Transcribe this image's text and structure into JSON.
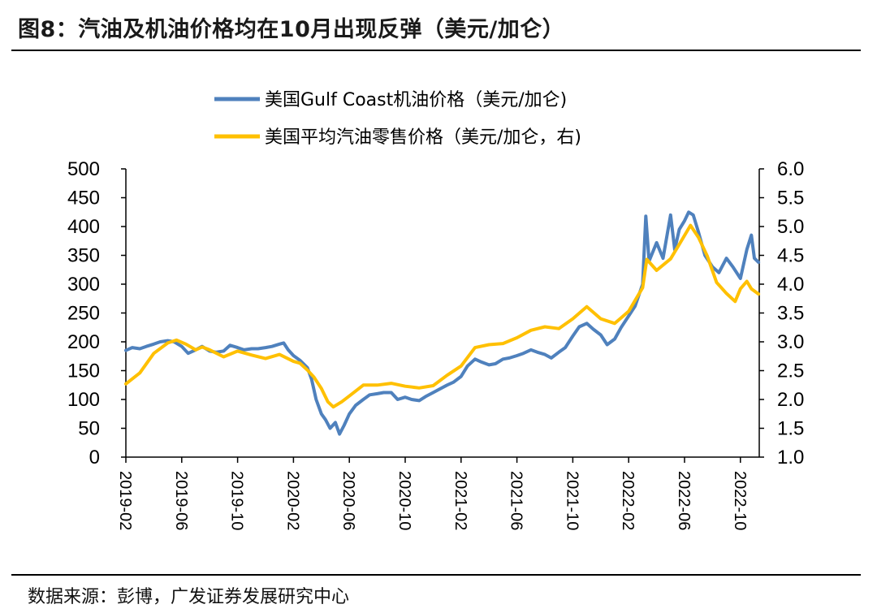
{
  "figure": {
    "title": "图8：汽油及机油价格均在10月出现反弹（美元/加仑）",
    "source": "数据来源：彭博，广发证券发展研究中心"
  },
  "colors": {
    "oil": "#4F81BD",
    "gasoline": "#FFC000",
    "axis": "#000000"
  },
  "chart_data": {
    "type": "line",
    "legend_placement": "top-center",
    "grid": false,
    "xaxis": {
      "range": [
        "2019-02",
        "2022-11"
      ],
      "ticks": [
        "2019-02",
        "2019-06",
        "2019-10",
        "2020-02",
        "2020-06",
        "2020-10",
        "2021-02",
        "2021-06",
        "2021-10",
        "2022-02",
        "2022-06",
        "2022-10"
      ]
    },
    "yaxis_left": {
      "range": [
        0,
        500
      ],
      "ticks": [
        "0",
        "50",
        "100",
        "150",
        "200",
        "250",
        "300",
        "350",
        "400",
        "450",
        "500"
      ]
    },
    "yaxis_right": {
      "range": [
        1.0,
        6.0
      ],
      "ticks": [
        "1.0",
        "1.5",
        "2.0",
        "2.5",
        "3.0",
        "3.5",
        "4.0",
        "4.5",
        "5.0",
        "5.5",
        "6.0"
      ]
    },
    "series": [
      {
        "name": "美国Gulf Coast机油价格（美元/加仑)",
        "axis": "left",
        "color": "#4F81BD",
        "points": [
          [
            "2019-02-01",
            185
          ],
          [
            "2019-02-15",
            190
          ],
          [
            "2019-03-01",
            188
          ],
          [
            "2019-03-15",
            192
          ],
          [
            "2019-04-01",
            196
          ],
          [
            "2019-04-15",
            200
          ],
          [
            "2019-05-01",
            202
          ],
          [
            "2019-05-15",
            200
          ],
          [
            "2019-06-01",
            192
          ],
          [
            "2019-06-15",
            180
          ],
          [
            "2019-07-01",
            186
          ],
          [
            "2019-07-15",
            192
          ],
          [
            "2019-08-01",
            184
          ],
          [
            "2019-08-15",
            182
          ],
          [
            "2019-09-01",
            184
          ],
          [
            "2019-09-15",
            194
          ],
          [
            "2019-10-01",
            190
          ],
          [
            "2019-10-15",
            186
          ],
          [
            "2019-11-01",
            188
          ],
          [
            "2019-11-15",
            188
          ],
          [
            "2019-12-01",
            190
          ],
          [
            "2019-12-15",
            192
          ],
          [
            "2020-01-01",
            196
          ],
          [
            "2020-01-10",
            198
          ],
          [
            "2020-01-20",
            186
          ],
          [
            "2020-02-01",
            176
          ],
          [
            "2020-02-15",
            168
          ],
          [
            "2020-03-01",
            155
          ],
          [
            "2020-03-10",
            135
          ],
          [
            "2020-03-20",
            100
          ],
          [
            "2020-04-01",
            75
          ],
          [
            "2020-04-10",
            65
          ],
          [
            "2020-04-20",
            50
          ],
          [
            "2020-05-01",
            60
          ],
          [
            "2020-05-10",
            40
          ],
          [
            "2020-05-20",
            55
          ],
          [
            "2020-06-01",
            75
          ],
          [
            "2020-06-15",
            90
          ],
          [
            "2020-07-01",
            100
          ],
          [
            "2020-07-15",
            108
          ],
          [
            "2020-08-01",
            110
          ],
          [
            "2020-08-15",
            112
          ],
          [
            "2020-09-01",
            112
          ],
          [
            "2020-09-15",
            100
          ],
          [
            "2020-10-01",
            104
          ],
          [
            "2020-10-15",
            100
          ],
          [
            "2020-11-01",
            98
          ],
          [
            "2020-11-15",
            105
          ],
          [
            "2020-12-01",
            112
          ],
          [
            "2020-12-15",
            118
          ],
          [
            "2021-01-01",
            125
          ],
          [
            "2021-01-15",
            130
          ],
          [
            "2021-02-01",
            140
          ],
          [
            "2021-02-15",
            158
          ],
          [
            "2021-03-01",
            170
          ],
          [
            "2021-03-15",
            165
          ],
          [
            "2021-04-01",
            160
          ],
          [
            "2021-04-15",
            162
          ],
          [
            "2021-05-01",
            170
          ],
          [
            "2021-05-15",
            172
          ],
          [
            "2021-06-01",
            176
          ],
          [
            "2021-06-15",
            180
          ],
          [
            "2021-07-01",
            186
          ],
          [
            "2021-07-15",
            182
          ],
          [
            "2021-08-01",
            178
          ],
          [
            "2021-08-15",
            172
          ],
          [
            "2021-09-01",
            182
          ],
          [
            "2021-09-15",
            190
          ],
          [
            "2021-10-01",
            210
          ],
          [
            "2021-10-15",
            226
          ],
          [
            "2021-11-01",
            232
          ],
          [
            "2021-11-15",
            222
          ],
          [
            "2021-12-01",
            212
          ],
          [
            "2021-12-15",
            195
          ],
          [
            "2022-01-01",
            205
          ],
          [
            "2022-01-15",
            225
          ],
          [
            "2022-02-01",
            245
          ],
          [
            "2022-02-15",
            262
          ],
          [
            "2022-03-01",
            300
          ],
          [
            "2022-03-08",
            418
          ],
          [
            "2022-03-15",
            340
          ],
          [
            "2022-04-01",
            372
          ],
          [
            "2022-04-15",
            345
          ],
          [
            "2022-05-01",
            420
          ],
          [
            "2022-05-10",
            360
          ],
          [
            "2022-05-20",
            395
          ],
          [
            "2022-06-01",
            410
          ],
          [
            "2022-06-10",
            425
          ],
          [
            "2022-06-20",
            420
          ],
          [
            "2022-07-01",
            390
          ],
          [
            "2022-07-15",
            350
          ],
          [
            "2022-08-01",
            330
          ],
          [
            "2022-08-15",
            320
          ],
          [
            "2022-09-01",
            345
          ],
          [
            "2022-09-15",
            330
          ],
          [
            "2022-10-01",
            310
          ],
          [
            "2022-10-15",
            360
          ],
          [
            "2022-10-25",
            385
          ],
          [
            "2022-11-01",
            345
          ],
          [
            "2022-11-10",
            338
          ]
        ]
      },
      {
        "name": "美国平均汽油零售价格（美元/加仑，右)",
        "axis": "right",
        "color": "#FFC000",
        "points": [
          [
            "2019-02-01",
            2.27
          ],
          [
            "2019-03-01",
            2.46
          ],
          [
            "2019-04-01",
            2.8
          ],
          [
            "2019-05-01",
            2.98
          ],
          [
            "2019-05-20",
            3.03
          ],
          [
            "2019-06-10",
            2.96
          ],
          [
            "2019-07-01",
            2.86
          ],
          [
            "2019-07-15",
            2.91
          ],
          [
            "2019-08-01",
            2.86
          ],
          [
            "2019-09-01",
            2.74
          ],
          [
            "2019-10-01",
            2.84
          ],
          [
            "2019-11-01",
            2.77
          ],
          [
            "2019-12-01",
            2.71
          ],
          [
            "2020-01-01",
            2.78
          ],
          [
            "2020-02-01",
            2.66
          ],
          [
            "2020-02-15",
            2.63
          ],
          [
            "2020-03-01",
            2.51
          ],
          [
            "2020-03-15",
            2.39
          ],
          [
            "2020-04-01",
            2.19
          ],
          [
            "2020-04-15",
            1.96
          ],
          [
            "2020-04-27",
            1.87
          ],
          [
            "2020-05-15",
            1.96
          ],
          [
            "2020-06-01",
            2.06
          ],
          [
            "2020-07-01",
            2.25
          ],
          [
            "2020-08-01",
            2.25
          ],
          [
            "2020-09-01",
            2.28
          ],
          [
            "2020-10-01",
            2.23
          ],
          [
            "2020-11-01",
            2.2
          ],
          [
            "2020-12-01",
            2.24
          ],
          [
            "2021-01-01",
            2.42
          ],
          [
            "2021-02-01",
            2.58
          ],
          [
            "2021-03-01",
            2.9
          ],
          [
            "2021-04-01",
            2.95
          ],
          [
            "2021-05-01",
            2.97
          ],
          [
            "2021-06-01",
            3.07
          ],
          [
            "2021-07-01",
            3.2
          ],
          [
            "2021-08-01",
            3.26
          ],
          [
            "2021-09-01",
            3.23
          ],
          [
            "2021-10-01",
            3.4
          ],
          [
            "2021-11-01",
            3.61
          ],
          [
            "2021-12-01",
            3.4
          ],
          [
            "2022-01-01",
            3.32
          ],
          [
            "2022-02-01",
            3.53
          ],
          [
            "2022-03-01",
            3.94
          ],
          [
            "2022-03-10",
            4.43
          ],
          [
            "2022-04-01",
            4.24
          ],
          [
            "2022-05-01",
            4.44
          ],
          [
            "2022-05-20",
            4.69
          ],
          [
            "2022-06-14",
            5.02
          ],
          [
            "2022-07-01",
            4.81
          ],
          [
            "2022-07-20",
            4.49
          ],
          [
            "2022-08-10",
            4.03
          ],
          [
            "2022-09-01",
            3.84
          ],
          [
            "2022-09-20",
            3.7
          ],
          [
            "2022-10-01",
            3.92
          ],
          [
            "2022-10-15",
            4.05
          ],
          [
            "2022-10-25",
            3.92
          ],
          [
            "2022-11-10",
            3.83
          ]
        ]
      }
    ]
  }
}
